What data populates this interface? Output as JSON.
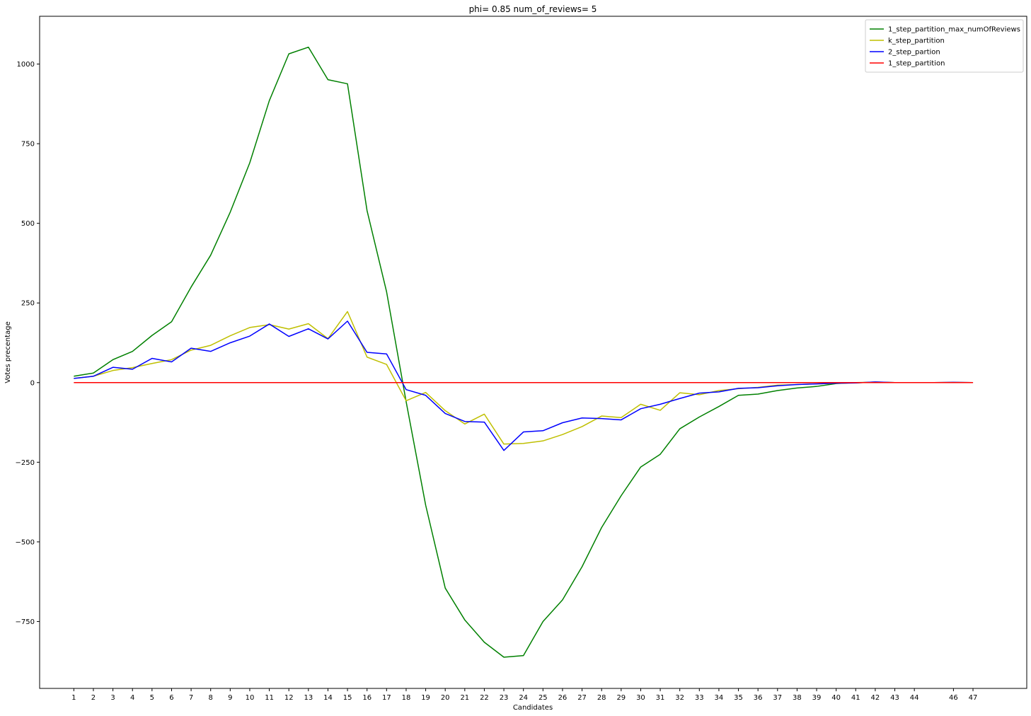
{
  "chart_data": {
    "type": "line",
    "title": "phi= 0.85 num_of_reviews= 5",
    "xlabel": "Candidates",
    "ylabel": "Votes precentage",
    "x_tick_labels": [
      "1",
      "2",
      "3",
      "4",
      "5",
      "6",
      "7",
      "8",
      "9",
      "10",
      "11",
      "12",
      "13",
      "14",
      "15",
      "16",
      "17",
      "18",
      "19",
      "20",
      "21",
      "22",
      "23",
      "24",
      "25",
      "26",
      "27",
      "28",
      "29",
      "30",
      "31",
      "32",
      "33",
      "34",
      "35",
      "36",
      "37",
      "38",
      "39",
      "40",
      "41",
      "42",
      "43",
      "44",
      "46",
      "47"
    ],
    "x_tick_positions": [
      1,
      2,
      3,
      4,
      5,
      6,
      7,
      8,
      9,
      10,
      11,
      12,
      13,
      14,
      15,
      16,
      17,
      18,
      19,
      20,
      21,
      22,
      23,
      24,
      25,
      26,
      27,
      28,
      29,
      30,
      31,
      32,
      33,
      34,
      35,
      36,
      37,
      38,
      39,
      40,
      41,
      42,
      43,
      44,
      46,
      47
    ],
    "y_ticks": [
      1000,
      750,
      500,
      250,
      0,
      -250,
      -500,
      -750
    ],
    "y_tick_labels": [
      "1000",
      "750",
      "500",
      "250",
      "0",
      "−250",
      "−500",
      "−750"
    ],
    "xlim": [
      -0.75,
      49.75
    ],
    "ylim": [
      -960,
      1150
    ],
    "grid": false,
    "legend_position": "top-right",
    "x": [
      1,
      2,
      3,
      4,
      5,
      6,
      7,
      8,
      9,
      10,
      11,
      12,
      13,
      14,
      15,
      16,
      17,
      18,
      19,
      20,
      21,
      22,
      23,
      24,
      25,
      26,
      27,
      28,
      29,
      30,
      31,
      32,
      33,
      34,
      35,
      36,
      37,
      38,
      39,
      40,
      41,
      42,
      43,
      44,
      45,
      46,
      47
    ],
    "series": [
      {
        "name": "1_step_partition_max_numOfReviews",
        "color": "#008000",
        "values": [
          20,
          30,
          72,
          98,
          148,
          191,
          300,
          400,
          535,
          690,
          885,
          1032,
          1053,
          951,
          938,
          540,
          285,
          -60,
          -385,
          -645,
          -745,
          -815,
          -862,
          -857,
          -750,
          -682,
          -578,
          -455,
          -355,
          -265,
          -225,
          -145,
          -108,
          -75,
          -40,
          -36,
          -25,
          -17,
          -12,
          -3,
          0,
          1,
          0,
          0,
          0,
          0,
          0
        ]
      },
      {
        "name": "k_step_partition",
        "color": "#bfbf00",
        "values": [
          13,
          20,
          38,
          47,
          60,
          72,
          102,
          117,
          147,
          173,
          182,
          168,
          185,
          138,
          223,
          80,
          57,
          -57,
          -31,
          -88,
          -130,
          -99,
          -193,
          -191,
          -183,
          -163,
          -138,
          -105,
          -110,
          -68,
          -87,
          -32,
          -38,
          -25,
          -19,
          -15,
          -8,
          -6,
          -4,
          -2,
          -1,
          2,
          0,
          0,
          0,
          1,
          0
        ]
      },
      {
        "name": "2_step_partion",
        "color": "#0000ff",
        "values": [
          13,
          20,
          48,
          42,
          76,
          65,
          108,
          98,
          125,
          146,
          184,
          145,
          169,
          137,
          193,
          95,
          90,
          -22,
          -40,
          -97,
          -122,
          -124,
          -213,
          -155,
          -151,
          -126,
          -111,
          -113,
          -117,
          -82,
          -68,
          -50,
          -33,
          -29,
          -18,
          -16,
          -10,
          -6,
          -4,
          -2,
          -1,
          2,
          0,
          0,
          0,
          1,
          0
        ]
      },
      {
        "name": "1_step_partition",
        "color": "#ff0000",
        "values": [
          0,
          0,
          0,
          0,
          0,
          0,
          0,
          0,
          0,
          0,
          0,
          0,
          0,
          0,
          0,
          0,
          0,
          0,
          0,
          0,
          0,
          0,
          0,
          0,
          0,
          0,
          0,
          0,
          0,
          0,
          0,
          0,
          0,
          0,
          0,
          0,
          0,
          0,
          0,
          0,
          0,
          0,
          0,
          0,
          0,
          0,
          0
        ]
      }
    ]
  }
}
